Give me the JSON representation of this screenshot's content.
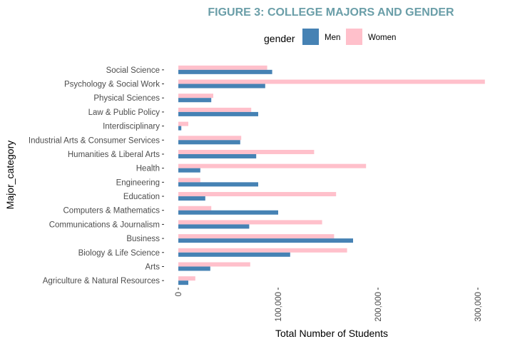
{
  "chart_data": {
    "type": "bar",
    "orientation": "horizontal",
    "title": "FIGURE 3: COLLEGE MAJORS AND GENDER",
    "xlabel": "Total Number of Students",
    "ylabel": "Major_category",
    "xlim": [
      0,
      310000
    ],
    "x_ticks": [
      0,
      100000,
      200000,
      300000
    ],
    "x_tick_labels": [
      "0",
      "100,000",
      "200,000",
      "300,000"
    ],
    "grid": false,
    "legend": {
      "title": "gender",
      "position": "top"
    },
    "categories": [
      "Social Science",
      "Psychology & Social Work",
      "Physical Sciences",
      "Law & Public Policy",
      "Interdisciplinary",
      "Industrial Arts & Consumer Services",
      "Humanities & Liberal Arts",
      "Health",
      "Engineering",
      "Education",
      "Computers & Mathematics",
      "Communications & Journalism",
      "Business",
      "Biology & Life Science",
      "Arts",
      "Agriculture & Natural Resources"
    ],
    "series": [
      {
        "name": "Men",
        "color": "#4682b4",
        "values": [
          94000,
          87000,
          33000,
          80000,
          3000,
          62000,
          78000,
          22000,
          80000,
          27000,
          100000,
          71000,
          175000,
          112000,
          32000,
          10000
        ]
      },
      {
        "name": "Women",
        "color": "#ffc0cb",
        "values": [
          89000,
          307000,
          35000,
          73000,
          10000,
          63000,
          136000,
          188000,
          22000,
          158000,
          33000,
          144000,
          156000,
          169000,
          72000,
          17000
        ]
      }
    ]
  },
  "colors": {
    "title": "#6a9ea8",
    "axis_text": "#4d4d4d",
    "tick": "#333333"
  }
}
